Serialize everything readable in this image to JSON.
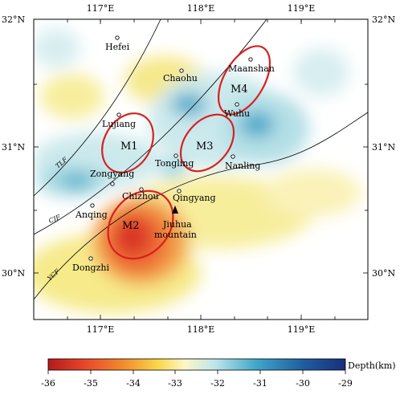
{
  "map": {
    "lon_ticks": [
      "117°E",
      "118°E",
      "119°E"
    ],
    "lat_ticks": [
      "32°N",
      "31°N",
      "30°N"
    ],
    "cities": [
      {
        "id": "hefei",
        "name": "Hefei"
      },
      {
        "id": "chaohu",
        "name": "Chaohu"
      },
      {
        "id": "maanshan",
        "name": "Maanshan"
      },
      {
        "id": "lujiang",
        "name": "Lujiang"
      },
      {
        "id": "wuhu",
        "name": "Wuhu"
      },
      {
        "id": "tongling",
        "name": "Tongling"
      },
      {
        "id": "nanling",
        "name": "Nanling"
      },
      {
        "id": "zongyang",
        "name": "Zongyang"
      },
      {
        "id": "chizhou",
        "name": "Chizhou"
      },
      {
        "id": "qingyang",
        "name": "Qingyang"
      },
      {
        "id": "anqing",
        "name": "Anqing"
      },
      {
        "id": "dongzhi",
        "name": "Dongzhi"
      }
    ],
    "mountain": {
      "line1": "Jiuhua",
      "line2": "mountain"
    },
    "zones": [
      "M1",
      "M2",
      "M3",
      "M4"
    ],
    "faults": [
      "TLF",
      "CJF",
      "YCF"
    ],
    "zone_color": "#d62020"
  },
  "colorbar": {
    "title": "Depth(km)",
    "ticks": [
      "-36",
      "-35",
      "-34",
      "-33",
      "-32",
      "-31",
      "-30",
      "-29"
    ],
    "colors": [
      "#b21a1a",
      "#e8452a",
      "#f28a2e",
      "#f9d84a",
      "#fdf6c8",
      "#bfe6ea",
      "#3fa7c9",
      "#1f5d9e",
      "#1a2f7a"
    ]
  }
}
